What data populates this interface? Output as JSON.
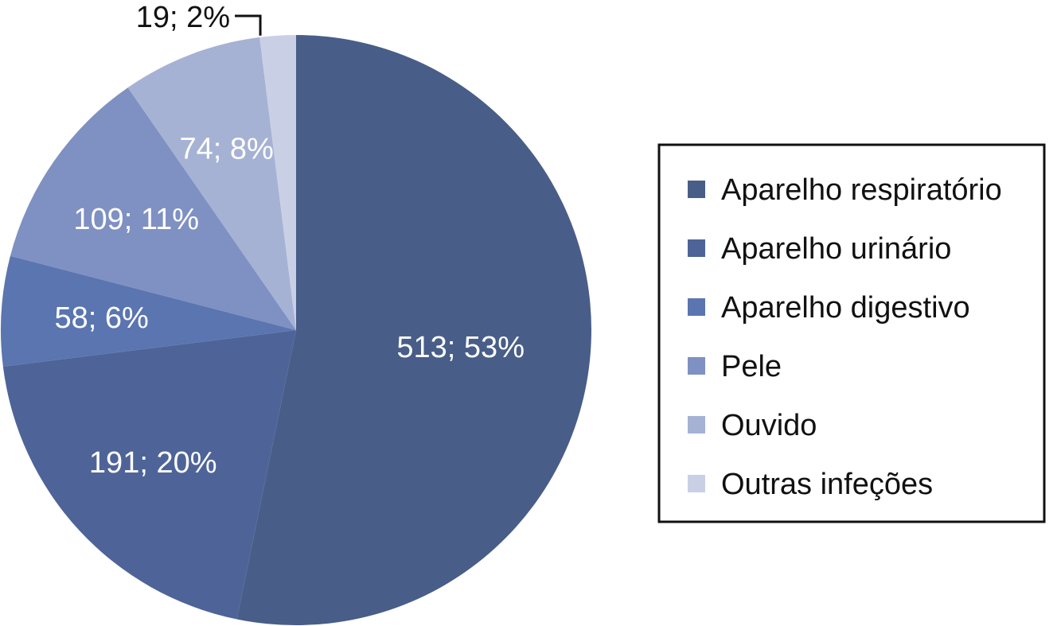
{
  "chart_data": {
    "type": "pie",
    "legend_position": "right",
    "slices": [
      {
        "name": "Aparelho respiratório",
        "value": 513,
        "percent": 53,
        "label": "513; 53%",
        "color": "#485d88"
      },
      {
        "name": "Aparelho urinário",
        "value": 191,
        "percent": 20,
        "label": "191; 20%",
        "color": "#4e6498"
      },
      {
        "name": "Aparelho digestivo",
        "value": 58,
        "percent": 6,
        "label": "58; 6%",
        "color": "#5a75b0"
      },
      {
        "name": "Pele",
        "value": 109,
        "percent": 11,
        "label": "109; 11%",
        "color": "#7f90c2"
      },
      {
        "name": "Ouvido",
        "value": 74,
        "percent": 8,
        "label": "74; 8%",
        "color": "#a6b2d4"
      },
      {
        "name": "Outras infeções",
        "value": 19,
        "percent": 2,
        "label": "19; 2%",
        "color": "#c9d0e6"
      }
    ]
  }
}
